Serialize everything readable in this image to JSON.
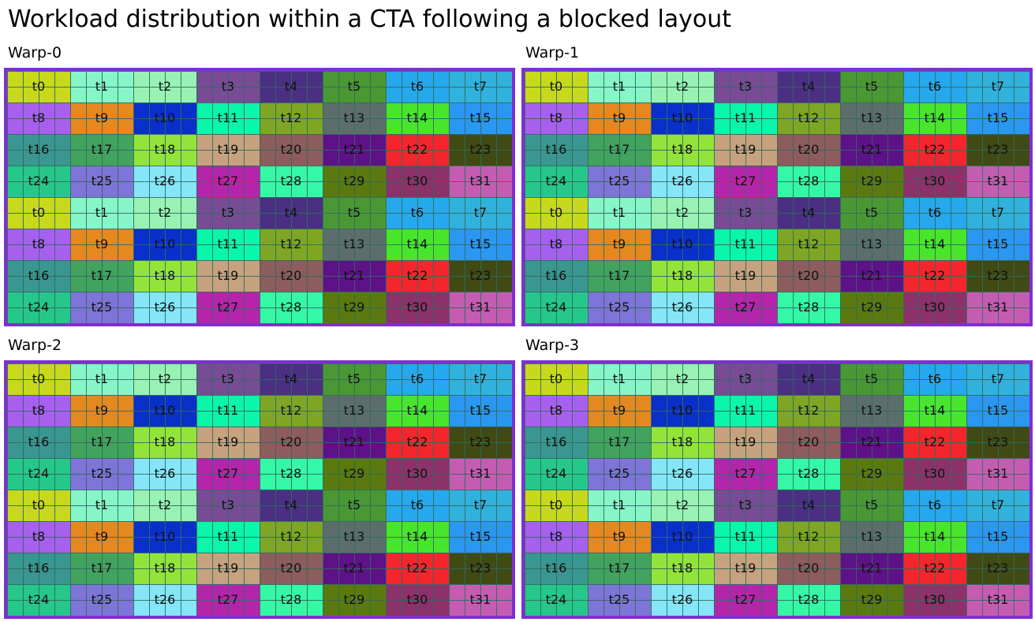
{
  "title": "Workload distribution within a CTA following a blocked layout",
  "warps": [
    {
      "label": "Warp-0"
    },
    {
      "label": "Warp-1"
    },
    {
      "label": "Warp-2"
    },
    {
      "label": "Warp-3"
    }
  ],
  "threads": [
    {
      "label": "t0",
      "color": "#c8d81c"
    },
    {
      "label": "t1",
      "color": "#86f5c8"
    },
    {
      "label": "t2",
      "color": "#98f2b4"
    },
    {
      "label": "t3",
      "color": "#774c95"
    },
    {
      "label": "t4",
      "color": "#4a2f82"
    },
    {
      "label": "t5",
      "color": "#4a9834"
    },
    {
      "label": "t6",
      "color": "#26a8ec"
    },
    {
      "label": "t7",
      "color": "#30b2dc"
    },
    {
      "label": "t8",
      "color": "#a760ee"
    },
    {
      "label": "t9",
      "color": "#e5881f"
    },
    {
      "label": "t10",
      "color": "#0a30ca"
    },
    {
      "label": "t11",
      "color": "#09f6ab"
    },
    {
      "label": "t12",
      "color": "#7ea624"
    },
    {
      "label": "t13",
      "color": "#5c6e6b"
    },
    {
      "label": "t14",
      "color": "#47e62d"
    },
    {
      "label": "t15",
      "color": "#2a97f1"
    },
    {
      "label": "t16",
      "color": "#3a9690"
    },
    {
      "label": "t17",
      "color": "#42a35f"
    },
    {
      "label": "t18",
      "color": "#92e43a"
    },
    {
      "label": "t19",
      "color": "#c7a27e"
    },
    {
      "label": "t20",
      "color": "#8d5c5c"
    },
    {
      "label": "t21",
      "color": "#5e1287"
    },
    {
      "label": "t22",
      "color": "#f3262d"
    },
    {
      "label": "t23",
      "color": "#3f4a14"
    },
    {
      "label": "t24",
      "color": "#25c88a"
    },
    {
      "label": "t25",
      "color": "#7f74d8"
    },
    {
      "label": "t26",
      "color": "#84e6f8"
    },
    {
      "label": "t27",
      "color": "#b525ab"
    },
    {
      "label": "t28",
      "color": "#35f8a6"
    },
    {
      "label": "t29",
      "color": "#5a7a0f"
    },
    {
      "label": "t30",
      "color": "#8c3169"
    },
    {
      "label": "t31",
      "color": "#c45db1"
    }
  ]
}
